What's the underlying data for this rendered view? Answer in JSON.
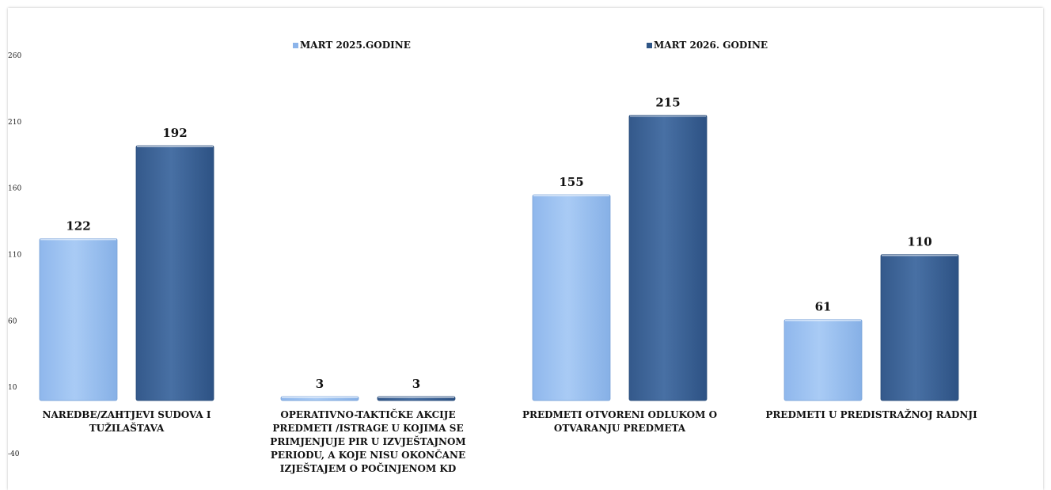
{
  "chart_data": {
    "type": "bar",
    "categories": [
      [
        "NAREDBE/ZAHTJEVI SUDOVA I",
        "TUŽILAŠTAVA"
      ],
      [
        "OPERATIVNO-TAKTIČKE AKCIJE",
        "PREDMETI /ISTRAGE U KOJIMA SE",
        "PRIMJENJUJE PIR U IZVJEŠTAJNOM",
        "PERIODU, A KOJE NISU OKONČANE",
        "IZJEŠTAJEM O POČINJENOM KD"
      ],
      [
        "PREDMETI OTVORENI ODLUKOM O",
        "OTVARANJU PREDMETA"
      ],
      [
        "PREDMETI U PREDISTRAŽNOJ RADNJI"
      ]
    ],
    "series": [
      {
        "name": "MART 2025.GODINE",
        "values": [
          122,
          3,
          155,
          61
        ]
      },
      {
        "name": "MART 2026. GODINE",
        "values": [
          192,
          3,
          215,
          110
        ]
      }
    ],
    "yticks": [
      260,
      210,
      160,
      110,
      60,
      10,
      -40
    ],
    "ylim": [
      -40,
      260
    ],
    "baseline": 0,
    "grid": false,
    "legend": "top",
    "colors": {
      "series1_light": "#a9cbf5",
      "series1_dark": "#8cb4ea",
      "series2_light": "#4c74a8",
      "series2_dark": "#2f5686"
    }
  }
}
